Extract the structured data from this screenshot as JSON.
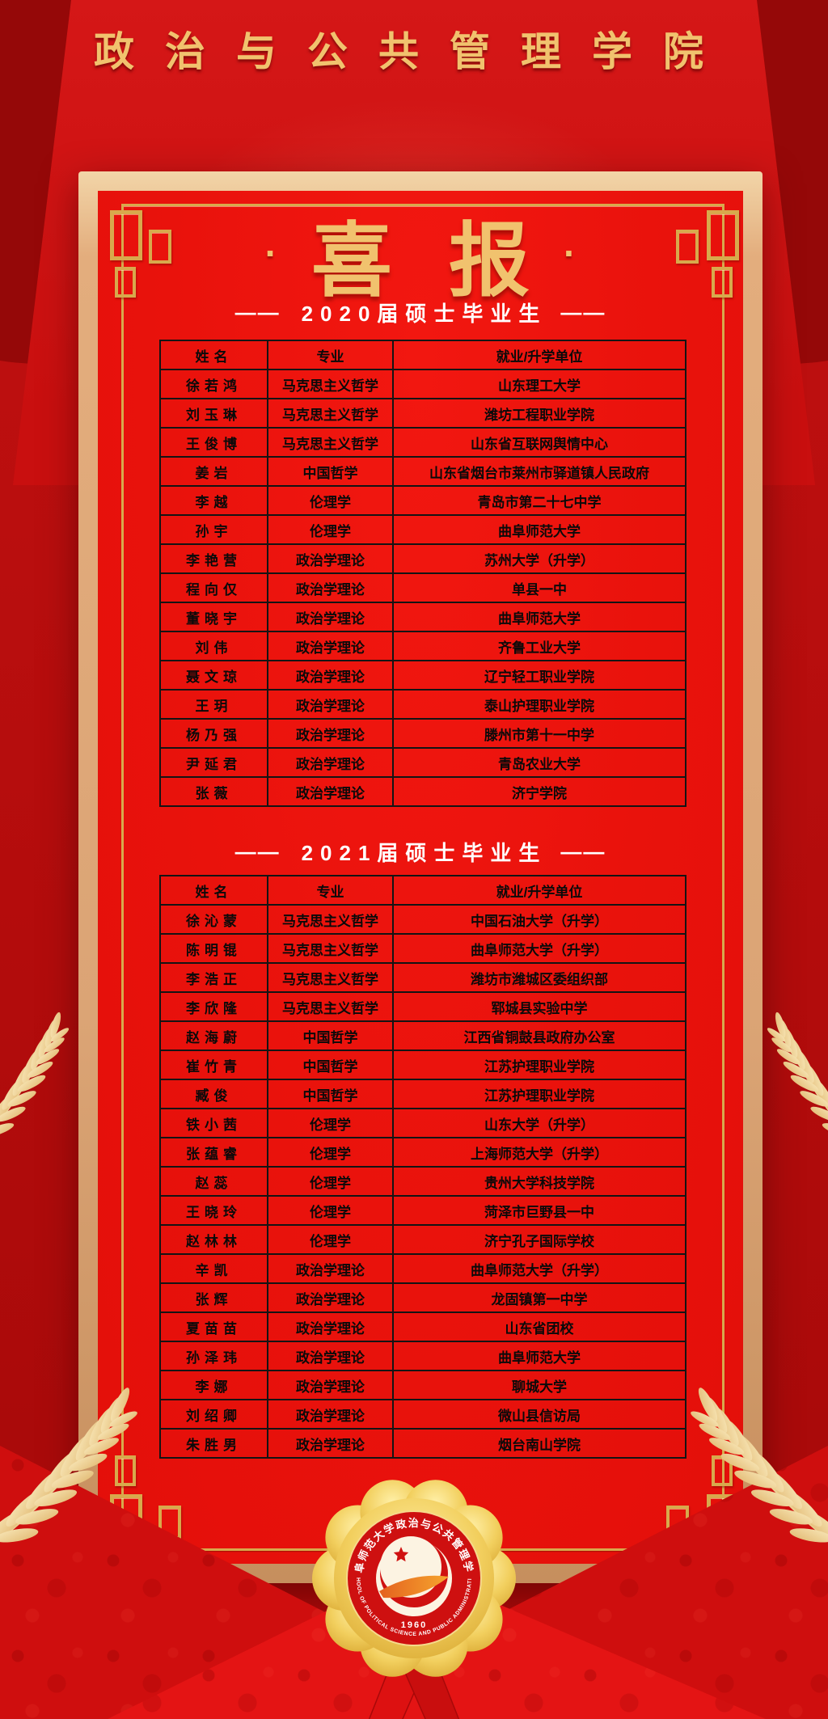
{
  "header": {
    "title": "政治与公共管理学院"
  },
  "banner": {
    "dot": "·",
    "title": "喜报"
  },
  "sections": [
    {
      "dash": "——",
      "title": "2020届硕士毕业生",
      "columns": [
        "姓名",
        "专业",
        "就业/升学单位"
      ],
      "rows": [
        [
          "徐若鸿",
          "马克思主义哲学",
          "山东理工大学"
        ],
        [
          "刘玉琳",
          "马克思主义哲学",
          "潍坊工程职业学院"
        ],
        [
          "王俊博",
          "马克思主义哲学",
          "山东省互联网舆情中心"
        ],
        [
          "姜岩",
          "中国哲学",
          "山东省烟台市莱州市驿道镇人民政府"
        ],
        [
          "李越",
          "伦理学",
          "青岛市第二十七中学"
        ],
        [
          "孙宇",
          "伦理学",
          "曲阜师范大学"
        ],
        [
          "李艳营",
          "政治学理论",
          "苏州大学（升学）"
        ],
        [
          "程向仅",
          "政治学理论",
          "单县一中"
        ],
        [
          "董晓宇",
          "政治学理论",
          "曲阜师范大学"
        ],
        [
          "刘伟",
          "政治学理论",
          "齐鲁工业大学"
        ],
        [
          "聂文琼",
          "政治学理论",
          "辽宁轻工职业学院"
        ],
        [
          "王玥",
          "政治学理论",
          "泰山护理职业学院"
        ],
        [
          "杨乃强",
          "政治学理论",
          "滕州市第十一中学"
        ],
        [
          "尹延君",
          "政治学理论",
          "青岛农业大学"
        ],
        [
          "张薇",
          "政治学理论",
          "济宁学院"
        ]
      ]
    },
    {
      "dash": "——",
      "title": "2021届硕士毕业生",
      "columns": [
        "姓名",
        "专业",
        "就业/升学单位"
      ],
      "rows": [
        [
          "徐沁蒙",
          "马克思主义哲学",
          "中国石油大学（升学）"
        ],
        [
          "陈明锟",
          "马克思主义哲学",
          "曲阜师范大学（升学）"
        ],
        [
          "李浩正",
          "马克思主义哲学",
          "潍坊市潍城区委组织部"
        ],
        [
          "李欣隆",
          "马克思主义哲学",
          "郓城县实验中学"
        ],
        [
          "赵海蔚",
          "中国哲学",
          "江西省铜鼓县政府办公室"
        ],
        [
          "崔竹青",
          "中国哲学",
          "江苏护理职业学院"
        ],
        [
          "臧俊",
          "中国哲学",
          "江苏护理职业学院"
        ],
        [
          "铁小茜",
          "伦理学",
          "山东大学（升学）"
        ],
        [
          "张蕴睿",
          "伦理学",
          "上海师范大学（升学）"
        ],
        [
          "赵蕊",
          "伦理学",
          "贵州大学科技学院"
        ],
        [
          "王晓玲",
          "伦理学",
          "菏泽市巨野县一中"
        ],
        [
          "赵林林",
          "伦理学",
          "济宁孔子国际学校"
        ],
        [
          "辛凯",
          "政治学理论",
          "曲阜师范大学（升学）"
        ],
        [
          "张辉",
          "政治学理论",
          "龙固镇第一中学"
        ],
        [
          "夏苗苗",
          "政治学理论",
          "山东省团校"
        ],
        [
          "孙泽玮",
          "政治学理论",
          "曲阜师范大学"
        ],
        [
          "李娜",
          "政治学理论",
          "聊城大学"
        ],
        [
          "刘绍卿",
          "政治学理论",
          "微山县信访局"
        ],
        [
          "朱胜男",
          "政治学理论",
          "烟台南山学院"
        ]
      ]
    }
  ],
  "seal": {
    "cn": "曲阜师范大学政治与公共管理学院",
    "en": "SCHOOL OF POLITICAL SCIENCE AND PUBLIC ADMINISTRATION",
    "year": "1960"
  },
  "colors": {
    "gold": "#f1c26e",
    "panel_red": "#e9120c",
    "frame_gold": "#d8a94c",
    "frame_tan": "#e3ad7d",
    "bg_mid": "#c21111",
    "table_line": "#141414",
    "header_text": "#ffffff",
    "seal_gold": "#f2cd62",
    "ribbon_red": "#dd1111"
  }
}
